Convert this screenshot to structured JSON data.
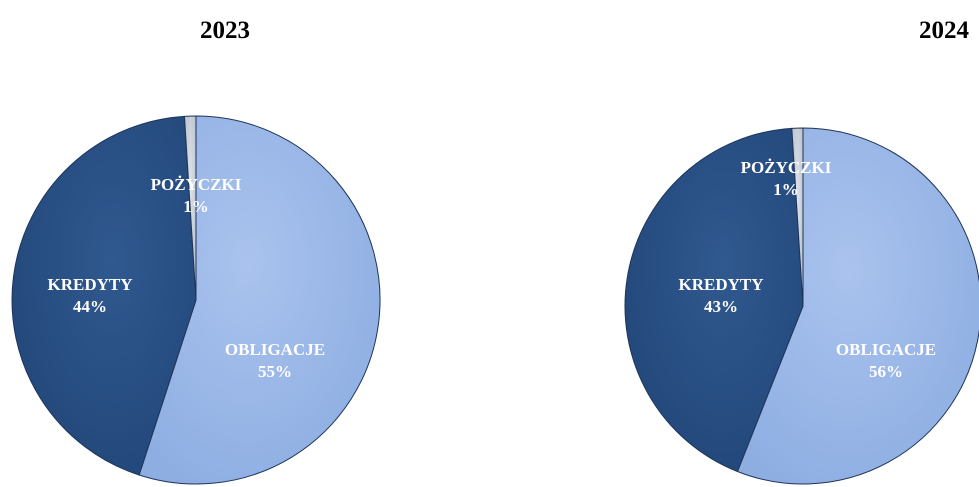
{
  "chart_data": [
    {
      "type": "pie",
      "title": "2023",
      "slices": [
        {
          "label": "OBLIGACJE",
          "value": 55,
          "value_label": "55%",
          "color": "#9bb7e5"
        },
        {
          "label": "KREDYTY",
          "value": 44,
          "value_label": "44%",
          "color": "#2b5188"
        },
        {
          "label": "POŻYCZKI",
          "value": 1,
          "value_label": "1%",
          "color": "#cdd3dc"
        }
      ]
    },
    {
      "type": "pie",
      "title": "2024",
      "slices": [
        {
          "label": "OBLIGACJE",
          "value": 56,
          "value_label": "56%",
          "color": "#9bb7e5"
        },
        {
          "label": "KREDYTY",
          "value": 43,
          "value_label": "43%",
          "color": "#2b5188"
        },
        {
          "label": "POŻYCZKI",
          "value": 1,
          "value_label": "1%",
          "color": "#cdd3dc"
        }
      ]
    }
  ]
}
